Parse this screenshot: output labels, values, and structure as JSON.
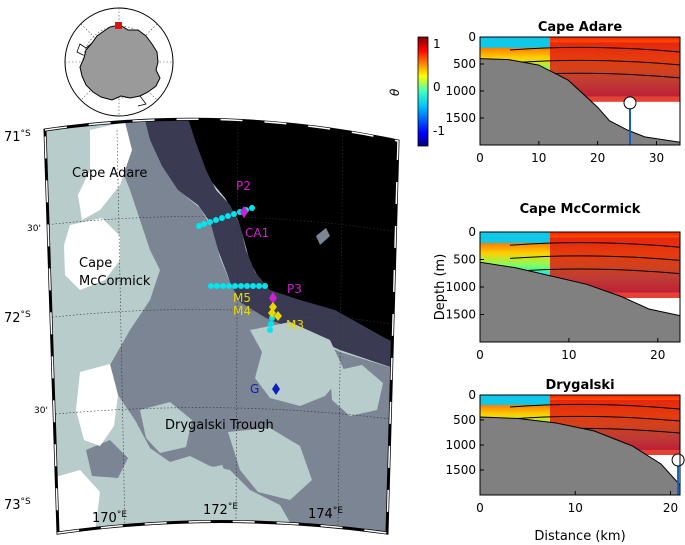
{
  "inset": {
    "marker_color": "#e01010"
  },
  "map": {
    "lat_labels": [
      {
        "deg": "71",
        "unit": "°S"
      },
      {
        "deg": "30'",
        "unit": ""
      },
      {
        "deg": "72",
        "unit": "°S"
      },
      {
        "deg": "30'",
        "unit": ""
      },
      {
        "deg": "73",
        "unit": "°S"
      }
    ],
    "lon_labels": [
      {
        "deg": "170",
        "unit": "°E"
      },
      {
        "deg": "172",
        "unit": "°E"
      },
      {
        "deg": "174",
        "unit": "°E"
      }
    ],
    "region_labels": {
      "cape_adare": "Cape Adare",
      "cape_mccormick_1": "Cape",
      "cape_mccormick_2": "McCormick",
      "drygalski_trough": "Drygalski Trough"
    },
    "stations": {
      "P2": "P2",
      "CA1": "CA1",
      "P3": "P3",
      "M5": "M5",
      "M4": "M4",
      "M3": "M3",
      "G": "G"
    },
    "colors": {
      "ocean_deep": "#000000",
      "shelf_dark": "#3a3a52",
      "shelf_mid": "#7b8594",
      "shallow": "#b9cccc",
      "land": "#ffffff",
      "stations_magenta": "#d020d0",
      "stations_yellow": "#e8d800",
      "stations_blue": "#1020c0",
      "ctd_cyan": "#00e5ee"
    }
  },
  "colorbar": {
    "label": "θ",
    "ticks": [
      "1",
      "0",
      "-1"
    ],
    "range": [
      -1.3,
      1.1
    ],
    "colormap": "jet"
  },
  "chart_data": [
    {
      "type": "heatmap",
      "title": "Cape Adare",
      "xlabel": "",
      "ylabel": "",
      "xlim": [
        0,
        34
      ],
      "ylim": [
        2000,
        0
      ],
      "xticks": [
        "0",
        "10",
        "20",
        "30"
      ],
      "yticks": [
        "0",
        "500",
        "1000",
        "1500"
      ],
      "bathymetry_depth": [
        [
          0,
          400
        ],
        [
          5,
          420
        ],
        [
          10,
          520
        ],
        [
          15,
          800
        ],
        [
          20,
          1300
        ],
        [
          22,
          1550
        ],
        [
          25,
          1720
        ],
        [
          28,
          1850
        ],
        [
          34,
          1950
        ]
      ],
      "marker": {
        "x": 25.5,
        "y": 1220
      }
    },
    {
      "type": "heatmap",
      "title": "Cape McCormick",
      "xlabel": "",
      "ylabel": "Depth (m)",
      "xlim": [
        0,
        22.5
      ],
      "ylim": [
        2000,
        0
      ],
      "xticks": [
        "0",
        "10",
        "20"
      ],
      "yticks": [
        "0",
        "500",
        "1000",
        "1500"
      ],
      "bathymetry_depth": [
        [
          0,
          550
        ],
        [
          4,
          650
        ],
        [
          8,
          800
        ],
        [
          12,
          950
        ],
        [
          16,
          1180
        ],
        [
          19,
          1400
        ],
        [
          22.5,
          1520
        ]
      ]
    },
    {
      "type": "heatmap",
      "title": "Drygalski",
      "xlabel": "Distance (km)",
      "ylabel": "",
      "xlim": [
        0,
        21
      ],
      "ylim": [
        2000,
        0
      ],
      "xticks": [
        "0",
        "10",
        "20"
      ],
      "yticks": [
        "0",
        "500",
        "1000",
        "1500"
      ],
      "bathymetry_depth": [
        [
          0,
          440
        ],
        [
          4,
          470
        ],
        [
          8,
          560
        ],
        [
          12,
          720
        ],
        [
          16,
          1020
        ],
        [
          19,
          1380
        ],
        [
          21,
          1800
        ]
      ],
      "marker": {
        "x": 20.8,
        "y": 1300
      }
    }
  ]
}
